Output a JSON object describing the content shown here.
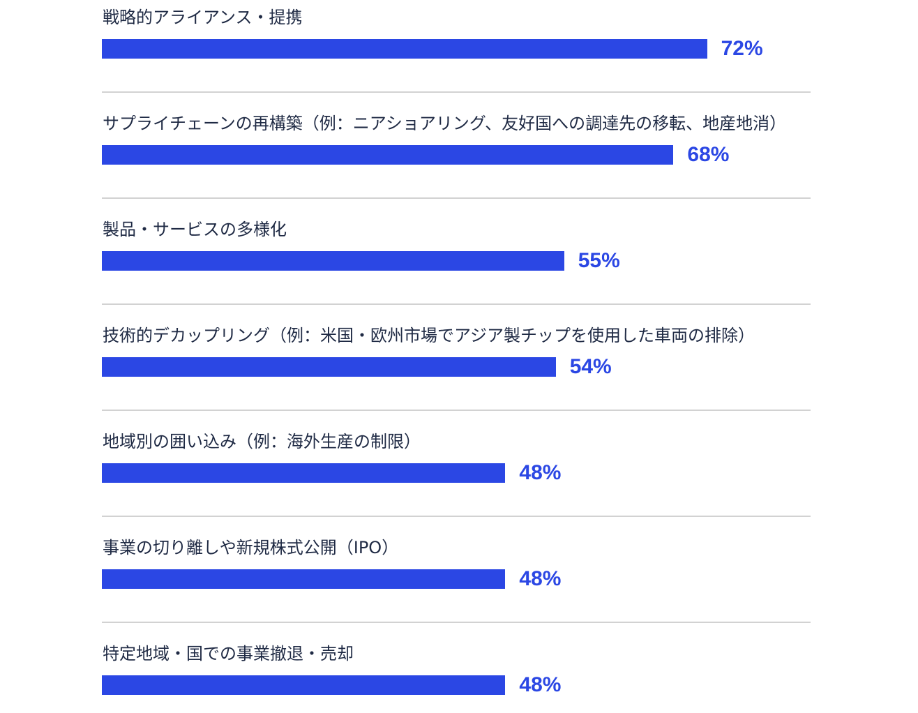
{
  "chart_data": {
    "type": "bar",
    "orientation": "horizontal",
    "categories": [
      "戦略的アライアンス・提携",
      "サプライチェーンの再構築（例：ニアショアリング、友好国への調達先の移転、地産地消）",
      "製品・サービスの多様化",
      "技術的デカップリング（例：米国・欧州市場でアジア製チップを使用した車両の排除）",
      "地域別の囲い込み（例：海外生産の制限）",
      "事業の切り離しや新規株式公開（IPO）",
      "特定地域・国での事業撤退・売却"
    ],
    "values": [
      72,
      68,
      55,
      54,
      48,
      48,
      48
    ],
    "value_labels": [
      "72%",
      "68%",
      "55%",
      "54%",
      "48%",
      "48%",
      "48%"
    ],
    "unit": "%",
    "grid": false,
    "legend": "none"
  },
  "colors": {
    "bar": "#2b47e4",
    "value_text": "#2b47e4",
    "label_text": "#1f2a44",
    "divider": "#d2d2d2"
  }
}
